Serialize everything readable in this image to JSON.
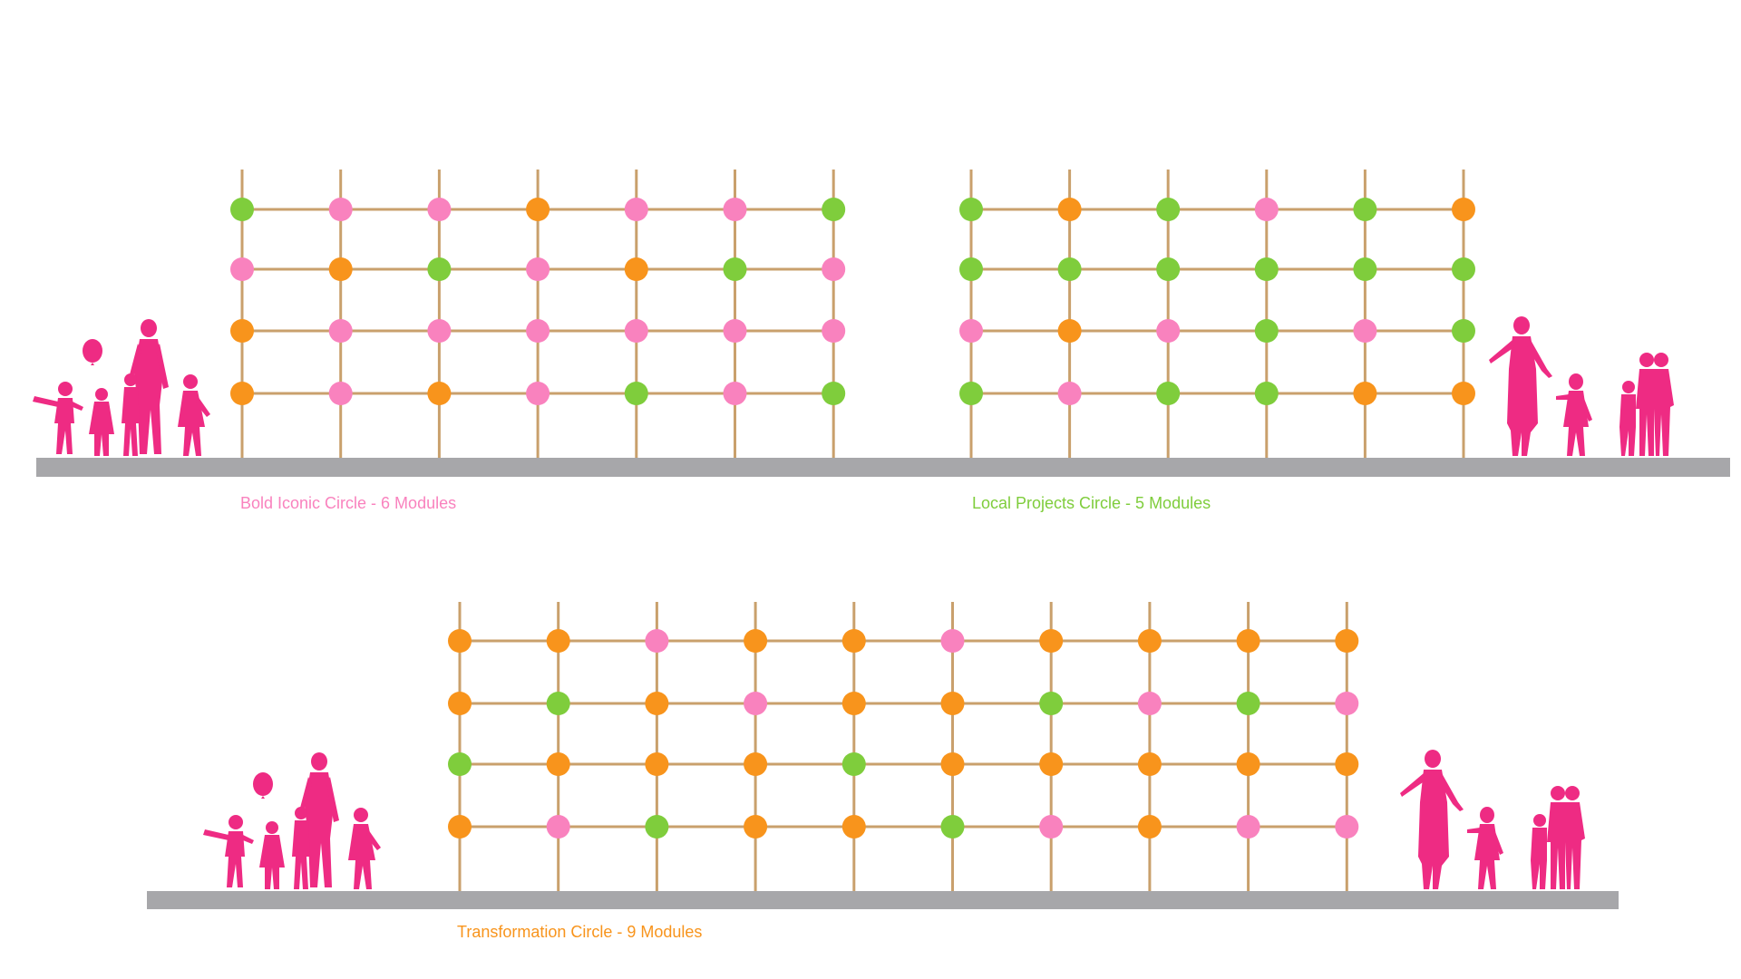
{
  "colors": {
    "pink": "#f982be",
    "green": "#7fcd3c",
    "orange": "#f8941c",
    "frame": "#c9a06c",
    "ground": "#a7a7aa",
    "figure": "#ee2b83"
  },
  "sections": [
    {
      "caption": "Bold Iconic Circle - 6 Modules",
      "caption_color": "#f982be",
      "modules": 6,
      "rows": [
        [
          "green",
          "pink",
          "pink",
          "orange",
          "pink",
          "pink",
          "green"
        ],
        [
          "pink",
          "orange",
          "green",
          "pink",
          "orange",
          "green",
          "pink"
        ],
        [
          "orange",
          "pink",
          "pink",
          "pink",
          "pink",
          "pink",
          "pink"
        ],
        [
          "orange",
          "pink",
          "orange",
          "pink",
          "green",
          "pink",
          "green"
        ]
      ]
    },
    {
      "caption": "Local Projects Circle - 5 Modules",
      "caption_color": "#7fcd3c",
      "modules": 5,
      "rows": [
        [
          "green",
          "orange",
          "green",
          "pink",
          "green",
          "orange"
        ],
        [
          "green",
          "green",
          "green",
          "green",
          "green",
          "green"
        ],
        [
          "pink",
          "orange",
          "pink",
          "green",
          "pink",
          "green"
        ],
        [
          "green",
          "pink",
          "green",
          "green",
          "orange",
          "orange"
        ]
      ]
    },
    {
      "caption": "Transformation Circle - 9 Modules",
      "caption_color": "#f8941c",
      "modules": 9,
      "rows": [
        [
          "orange",
          "orange",
          "pink",
          "orange",
          "orange",
          "pink",
          "orange",
          "orange",
          "orange",
          "orange"
        ],
        [
          "orange",
          "green",
          "orange",
          "pink",
          "orange",
          "orange",
          "green",
          "pink",
          "green",
          "pink"
        ],
        [
          "green",
          "orange",
          "orange",
          "orange",
          "green",
          "orange",
          "orange",
          "orange",
          "orange",
          "orange"
        ],
        [
          "orange",
          "pink",
          "green",
          "orange",
          "orange",
          "green",
          "pink",
          "orange",
          "pink",
          "pink"
        ]
      ]
    }
  ]
}
